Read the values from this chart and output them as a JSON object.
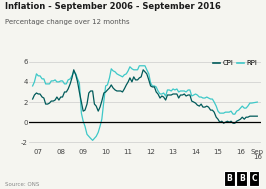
{
  "title": "Inflation - September 2006 - September 2016",
  "subtitle": "Percentage change over 12 months",
  "source": "Source: ONS",
  "cpi_color": "#005a5a",
  "rpi_color": "#3dc8c8",
  "background_color": "#f5f5f0",
  "plot_bg_color": "#f5f5f0",
  "grid_color": "#cccccc",
  "xlim_start": 2006.6,
  "xlim_end": 2016.9,
  "ylim": [
    -2.5,
    6.5
  ],
  "yticks": [
    -2,
    0,
    2,
    4,
    6
  ],
  "xtick_labels": [
    "07",
    "08",
    "09",
    "10",
    "11",
    "12",
    "13",
    "14",
    "15",
    "16",
    "Sep\n16"
  ],
  "xtick_positions": [
    2007,
    2008,
    2009,
    2010,
    2011,
    2012,
    2013,
    2014,
    2015,
    2016,
    2016.75
  ],
  "cpi_data": [
    [
      2006.75,
      2.3
    ],
    [
      2006.83,
      2.7
    ],
    [
      2006.92,
      2.9
    ],
    [
      2007.0,
      2.8
    ],
    [
      2007.08,
      2.8
    ],
    [
      2007.17,
      2.5
    ],
    [
      2007.25,
      2.4
    ],
    [
      2007.33,
      1.8
    ],
    [
      2007.42,
      1.8
    ],
    [
      2007.5,
      1.9
    ],
    [
      2007.58,
      2.1
    ],
    [
      2007.67,
      2.1
    ],
    [
      2007.75,
      2.2
    ],
    [
      2007.83,
      2.5
    ],
    [
      2007.92,
      2.2
    ],
    [
      2008.0,
      2.5
    ],
    [
      2008.08,
      2.5
    ],
    [
      2008.17,
      3.0
    ],
    [
      2008.25,
      3.0
    ],
    [
      2008.33,
      3.3
    ],
    [
      2008.42,
      3.8
    ],
    [
      2008.5,
      4.4
    ],
    [
      2008.58,
      5.2
    ],
    [
      2008.67,
      4.7
    ],
    [
      2008.75,
      4.0
    ],
    [
      2008.83,
      3.0
    ],
    [
      2008.92,
      2.0
    ],
    [
      2009.0,
      1.1
    ],
    [
      2009.08,
      1.2
    ],
    [
      2009.17,
      1.8
    ],
    [
      2009.25,
      2.9
    ],
    [
      2009.33,
      3.1
    ],
    [
      2009.42,
      3.1
    ],
    [
      2009.5,
      1.8
    ],
    [
      2009.58,
      1.6
    ],
    [
      2009.67,
      1.1
    ],
    [
      2009.75,
      1.5
    ],
    [
      2009.83,
      2.1
    ],
    [
      2009.92,
      2.9
    ],
    [
      2010.0,
      3.0
    ],
    [
      2010.08,
      3.2
    ],
    [
      2010.17,
      3.4
    ],
    [
      2010.25,
      3.7
    ],
    [
      2010.33,
      3.4
    ],
    [
      2010.42,
      3.2
    ],
    [
      2010.5,
      3.1
    ],
    [
      2010.58,
      3.1
    ],
    [
      2010.67,
      3.1
    ],
    [
      2010.75,
      3.0
    ],
    [
      2010.83,
      3.3
    ],
    [
      2010.92,
      3.7
    ],
    [
      2011.0,
      4.0
    ],
    [
      2011.08,
      4.4
    ],
    [
      2011.17,
      4.0
    ],
    [
      2011.25,
      4.5
    ],
    [
      2011.33,
      4.2
    ],
    [
      2011.42,
      4.2
    ],
    [
      2011.5,
      4.4
    ],
    [
      2011.58,
      4.5
    ],
    [
      2011.67,
      5.2
    ],
    [
      2011.75,
      5.0
    ],
    [
      2011.83,
      4.8
    ],
    [
      2011.92,
      4.2
    ],
    [
      2012.0,
      3.6
    ],
    [
      2012.08,
      3.5
    ],
    [
      2012.17,
      3.5
    ],
    [
      2012.25,
      3.0
    ],
    [
      2012.33,
      2.8
    ],
    [
      2012.42,
      2.4
    ],
    [
      2012.5,
      2.6
    ],
    [
      2012.58,
      2.5
    ],
    [
      2012.67,
      2.2
    ],
    [
      2012.75,
      2.7
    ],
    [
      2012.83,
      2.7
    ],
    [
      2012.92,
      2.7
    ],
    [
      2013.0,
      2.8
    ],
    [
      2013.08,
      2.8
    ],
    [
      2013.17,
      2.8
    ],
    [
      2013.25,
      2.4
    ],
    [
      2013.33,
      2.7
    ],
    [
      2013.42,
      2.7
    ],
    [
      2013.5,
      2.8
    ],
    [
      2013.58,
      2.6
    ],
    [
      2013.67,
      2.7
    ],
    [
      2013.75,
      2.7
    ],
    [
      2013.83,
      2.1
    ],
    [
      2013.92,
      2.0
    ],
    [
      2014.0,
      1.9
    ],
    [
      2014.08,
      1.7
    ],
    [
      2014.17,
      1.6
    ],
    [
      2014.25,
      1.8
    ],
    [
      2014.33,
      1.5
    ],
    [
      2014.42,
      1.5
    ],
    [
      2014.5,
      1.6
    ],
    [
      2014.58,
      1.5
    ],
    [
      2014.67,
      1.2
    ],
    [
      2014.75,
      1.2
    ],
    [
      2014.83,
      1.0
    ],
    [
      2014.92,
      0.5
    ],
    [
      2015.0,
      0.3
    ],
    [
      2015.08,
      0.0
    ],
    [
      2015.17,
      0.1
    ],
    [
      2015.25,
      -0.1
    ],
    [
      2015.33,
      0.0
    ],
    [
      2015.42,
      0.1
    ],
    [
      2015.5,
      0.0
    ],
    [
      2015.58,
      0.1
    ],
    [
      2015.67,
      -0.1
    ],
    [
      2015.75,
      -0.1
    ],
    [
      2015.83,
      0.1
    ],
    [
      2015.92,
      0.2
    ],
    [
      2016.0,
      0.3
    ],
    [
      2016.08,
      0.5
    ],
    [
      2016.17,
      0.3
    ],
    [
      2016.25,
      0.5
    ],
    [
      2016.33,
      0.5
    ],
    [
      2016.42,
      0.6
    ],
    [
      2016.5,
      0.6
    ],
    [
      2016.75,
      0.6
    ]
  ],
  "rpi_data": [
    [
      2006.75,
      3.6
    ],
    [
      2006.83,
      4.0
    ],
    [
      2006.92,
      4.8
    ],
    [
      2007.0,
      4.6
    ],
    [
      2007.08,
      4.6
    ],
    [
      2007.17,
      4.3
    ],
    [
      2007.25,
      4.3
    ],
    [
      2007.33,
      3.8
    ],
    [
      2007.42,
      3.8
    ],
    [
      2007.5,
      3.8
    ],
    [
      2007.58,
      4.1
    ],
    [
      2007.67,
      4.1
    ],
    [
      2007.75,
      4.2
    ],
    [
      2007.83,
      4.0
    ],
    [
      2007.92,
      4.0
    ],
    [
      2008.0,
      4.1
    ],
    [
      2008.08,
      4.1
    ],
    [
      2008.17,
      3.8
    ],
    [
      2008.25,
      3.8
    ],
    [
      2008.33,
      4.2
    ],
    [
      2008.42,
      4.3
    ],
    [
      2008.5,
      4.6
    ],
    [
      2008.58,
      5.0
    ],
    [
      2008.67,
      4.8
    ],
    [
      2008.75,
      4.3
    ],
    [
      2008.83,
      3.9
    ],
    [
      2008.92,
      0.9
    ],
    [
      2009.0,
      0.1
    ],
    [
      2009.08,
      -0.4
    ],
    [
      2009.17,
      -1.2
    ],
    [
      2009.25,
      -1.4
    ],
    [
      2009.33,
      -1.6
    ],
    [
      2009.42,
      -1.8
    ],
    [
      2009.5,
      -1.6
    ],
    [
      2009.58,
      -1.4
    ],
    [
      2009.67,
      -1.0
    ],
    [
      2009.75,
      -0.4
    ],
    [
      2009.83,
      0.3
    ],
    [
      2009.92,
      2.1
    ],
    [
      2010.0,
      3.6
    ],
    [
      2010.08,
      3.7
    ],
    [
      2010.17,
      4.4
    ],
    [
      2010.25,
      5.3
    ],
    [
      2010.33,
      5.1
    ],
    [
      2010.42,
      5.0
    ],
    [
      2010.5,
      4.8
    ],
    [
      2010.58,
      4.7
    ],
    [
      2010.67,
      4.6
    ],
    [
      2010.75,
      4.5
    ],
    [
      2010.83,
      4.7
    ],
    [
      2010.92,
      4.8
    ],
    [
      2011.0,
      5.1
    ],
    [
      2011.08,
      5.5
    ],
    [
      2011.17,
      5.3
    ],
    [
      2011.25,
      5.2
    ],
    [
      2011.33,
      5.2
    ],
    [
      2011.42,
      5.2
    ],
    [
      2011.5,
      5.6
    ],
    [
      2011.58,
      5.6
    ],
    [
      2011.67,
      5.6
    ],
    [
      2011.75,
      5.6
    ],
    [
      2011.83,
      5.2
    ],
    [
      2011.92,
      4.8
    ],
    [
      2012.0,
      3.9
    ],
    [
      2012.08,
      3.6
    ],
    [
      2012.17,
      3.6
    ],
    [
      2012.25,
      3.5
    ],
    [
      2012.33,
      3.1
    ],
    [
      2012.42,
      2.8
    ],
    [
      2012.5,
      2.8
    ],
    [
      2012.58,
      2.9
    ],
    [
      2012.67,
      2.6
    ],
    [
      2012.75,
      3.2
    ],
    [
      2012.83,
      3.2
    ],
    [
      2012.92,
      3.1
    ],
    [
      2013.0,
      3.3
    ],
    [
      2013.08,
      3.2
    ],
    [
      2013.17,
      3.3
    ],
    [
      2013.25,
      3.0
    ],
    [
      2013.33,
      3.1
    ],
    [
      2013.42,
      3.1
    ],
    [
      2013.5,
      3.1
    ],
    [
      2013.58,
      3.0
    ],
    [
      2013.67,
      3.2
    ],
    [
      2013.75,
      3.2
    ],
    [
      2013.83,
      2.6
    ],
    [
      2013.92,
      2.7
    ],
    [
      2014.0,
      2.8
    ],
    [
      2014.08,
      2.7
    ],
    [
      2014.17,
      2.5
    ],
    [
      2014.25,
      2.5
    ],
    [
      2014.33,
      2.4
    ],
    [
      2014.42,
      2.4
    ],
    [
      2014.5,
      2.5
    ],
    [
      2014.58,
      2.4
    ],
    [
      2014.67,
      2.3
    ],
    [
      2014.75,
      2.3
    ],
    [
      2014.83,
      2.0
    ],
    [
      2014.92,
      1.6
    ],
    [
      2015.0,
      1.1
    ],
    [
      2015.08,
      0.9
    ],
    [
      2015.17,
      0.9
    ],
    [
      2015.25,
      0.9
    ],
    [
      2015.33,
      1.0
    ],
    [
      2015.42,
      1.0
    ],
    [
      2015.5,
      1.0
    ],
    [
      2015.58,
      1.1
    ],
    [
      2015.67,
      0.8
    ],
    [
      2015.75,
      0.8
    ],
    [
      2015.83,
      1.1
    ],
    [
      2015.92,
      1.2
    ],
    [
      2016.0,
      1.4
    ],
    [
      2016.08,
      1.6
    ],
    [
      2016.17,
      1.4
    ],
    [
      2016.25,
      1.4
    ],
    [
      2016.33,
      1.6
    ],
    [
      2016.42,
      1.9
    ],
    [
      2016.5,
      1.9
    ],
    [
      2016.75,
      2.0
    ]
  ]
}
